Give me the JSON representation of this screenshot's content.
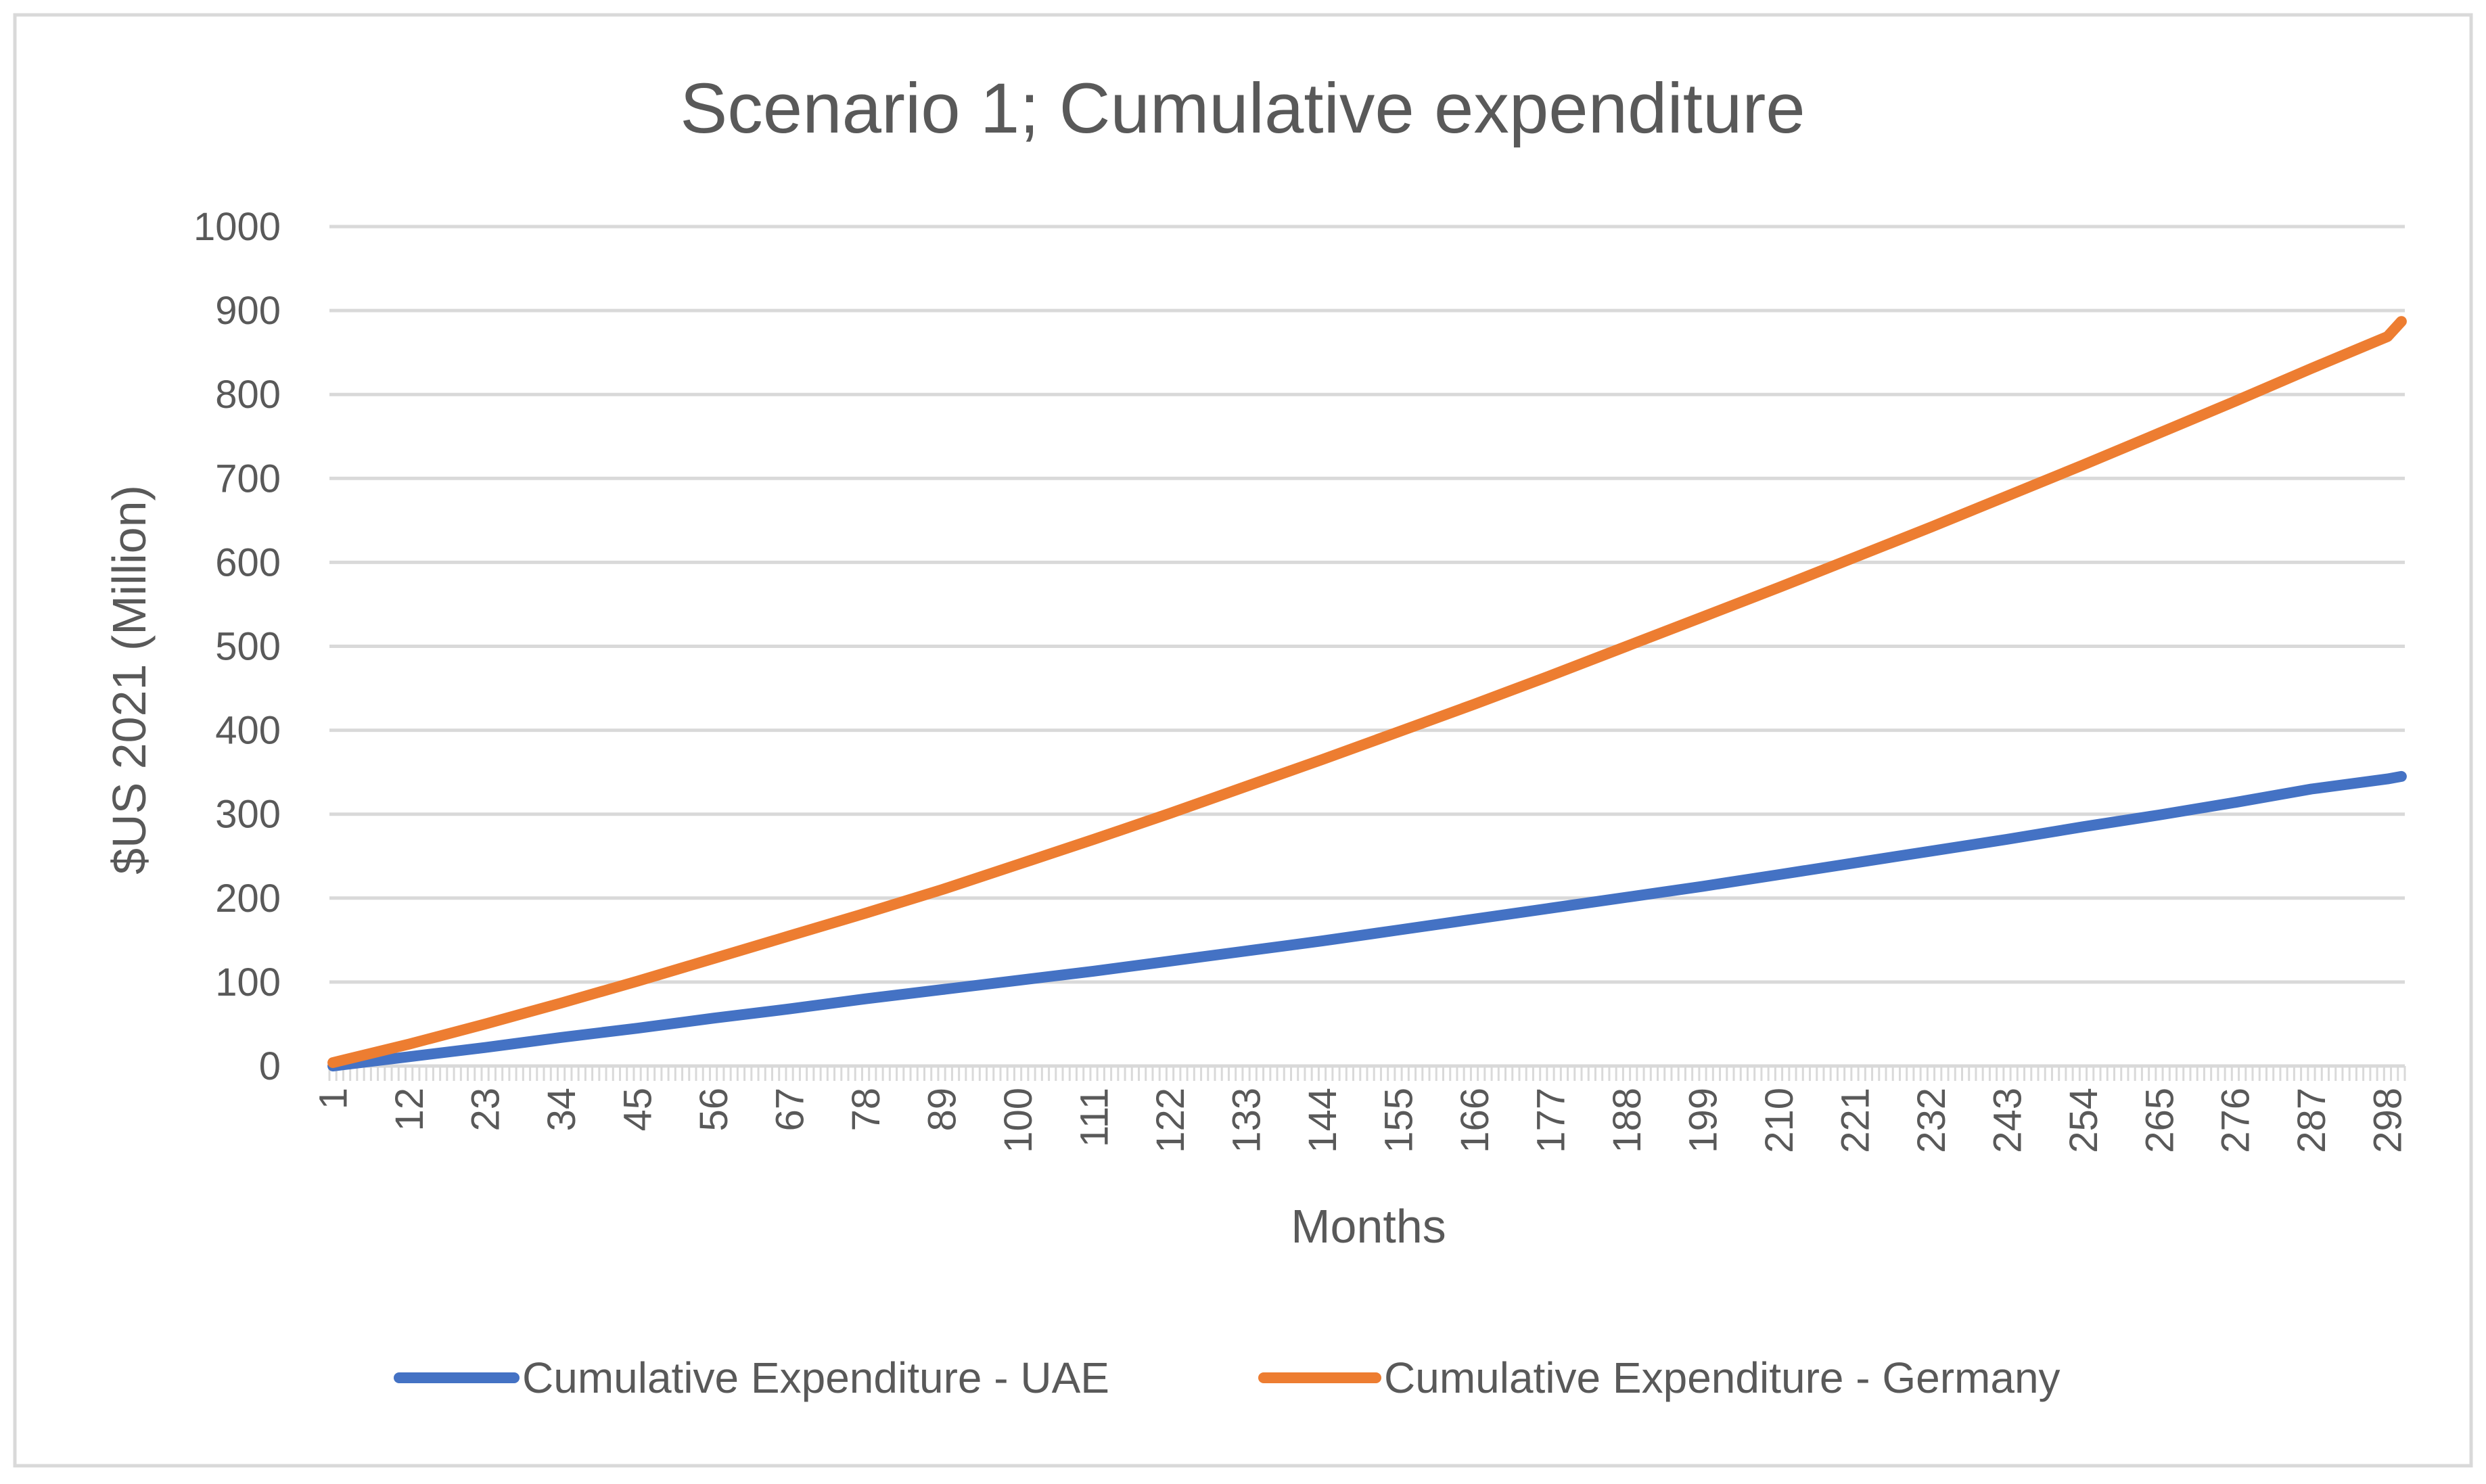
{
  "chart_data": {
    "type": "line",
    "title": "Scenario 1; Cumulative expenditure",
    "xlabel": "Months",
    "ylabel": "$US 2021 (Million)",
    "x_range": [
      1,
      300
    ],
    "x_tick_labels": [
      "1",
      "12",
      "23",
      "34",
      "45",
      "56",
      "67",
      "78",
      "89",
      "100",
      "111",
      "122",
      "133",
      "144",
      "155",
      "166",
      "177",
      "188",
      "199",
      "210",
      "221",
      "232",
      "243",
      "254",
      "265",
      "276",
      "287",
      "298"
    ],
    "ylim": [
      0,
      1000
    ],
    "y_ticks": [
      0,
      100,
      200,
      300,
      400,
      500,
      600,
      700,
      800,
      900,
      1000
    ],
    "y_tick_labels": [
      "0",
      "100",
      "200",
      "300",
      "400",
      "500",
      "600",
      "700",
      "800",
      "900",
      "1000"
    ],
    "grid": true,
    "legend_position": "bottom",
    "x": [
      1,
      12,
      23,
      34,
      45,
      56,
      67,
      78,
      89,
      100,
      111,
      122,
      133,
      144,
      155,
      166,
      177,
      188,
      199,
      210,
      221,
      232,
      243,
      254,
      265,
      276,
      287,
      298,
      300
    ],
    "series": [
      {
        "name": "Cumulative Expenditure - UAE",
        "color": "#4472c4",
        "values": [
          0,
          11,
          22,
          34,
          45,
          57,
          68,
          80,
          91,
          102,
          113,
          125,
          137,
          149,
          162,
          175,
          188,
          201,
          214,
          228,
          242,
          256,
          270,
          285,
          299,
          314,
          330,
          342,
          345
        ]
      },
      {
        "name": "Cumulative Expenditure - Germany",
        "color": "#ed7d31",
        "values": [
          4,
          26,
          50,
          75,
          101,
          128,
          155,
          182,
          210,
          240,
          270,
          301,
          333,
          365,
          398,
          431,
          465,
          500,
          535,
          570,
          606,
          642,
          679,
          716,
          754,
          792,
          831,
          869,
          887
        ]
      }
    ]
  }
}
